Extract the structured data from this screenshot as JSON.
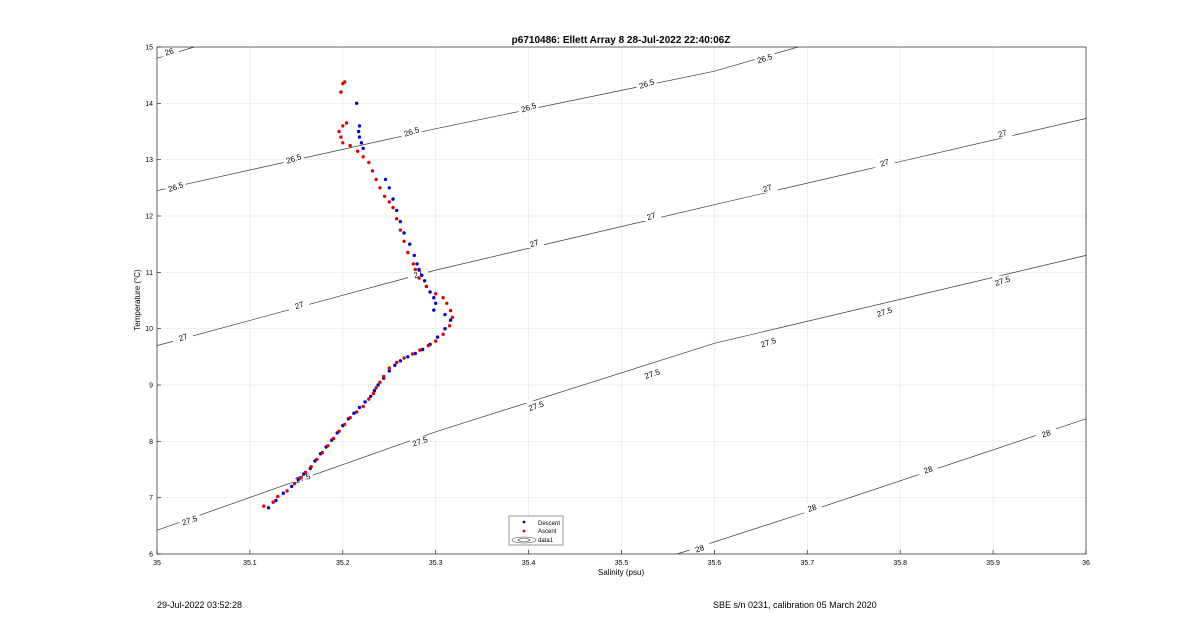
{
  "chart_data": {
    "type": "scatter",
    "title": "p6710486: Ellett Array 8 28-Jul-2022 22:40:06Z",
    "xlabel": "Salinity (psu)",
    "ylabel": "Temperature (°C)",
    "xlim": [
      35,
      36
    ],
    "ylim": [
      6,
      15
    ],
    "xticks": [
      "35",
      "35.1",
      "35.2",
      "35.3",
      "35.4",
      "35.5",
      "35.6",
      "35.7",
      "35.8",
      "35.9",
      "36"
    ],
    "yticks": [
      "6",
      "7",
      "8",
      "9",
      "10",
      "11",
      "12",
      "13",
      "14",
      "15"
    ],
    "grid": true,
    "legend_position": "bottom-center",
    "legend": [
      "Descent",
      "Ascent",
      "data1"
    ],
    "contours": [
      {
        "label": "26",
        "points": [
          [
            35.0,
            14.8
          ],
          [
            35.04,
            15.0
          ]
        ],
        "label_positions": [
          [
            35.013,
            14.92
          ]
        ]
      },
      {
        "label": "26.5",
        "points": [
          [
            35.0,
            12.45
          ],
          [
            35.3,
            13.55
          ],
          [
            35.6,
            14.57
          ],
          [
            35.69,
            15.0
          ]
        ],
        "label_positions": [
          [
            35.02,
            12.52
          ],
          [
            35.147,
            13.02
          ],
          [
            35.274,
            13.5
          ],
          [
            35.4,
            13.93
          ],
          [
            35.527,
            14.35
          ],
          [
            35.654,
            14.8
          ]
        ]
      },
      {
        "label": "27",
        "points": [
          [
            35.0,
            9.7
          ],
          [
            35.3,
            11.04
          ],
          [
            35.6,
            12.2
          ],
          [
            36.0,
            13.73
          ]
        ],
        "label_positions": [
          [
            35.028,
            9.85
          ],
          [
            35.153,
            10.42
          ],
          [
            35.281,
            10.97
          ],
          [
            35.406,
            11.52
          ],
          [
            35.532,
            12.0
          ],
          [
            35.657,
            12.5
          ],
          [
            35.783,
            12.95
          ],
          [
            35.91,
            13.47
          ]
        ]
      },
      {
        "label": "27.5",
        "points": [
          [
            35.0,
            6.42
          ],
          [
            35.3,
            8.17
          ],
          [
            35.6,
            9.74
          ],
          [
            36.0,
            11.3
          ]
        ],
        "label_positions": [
          [
            35.035,
            6.6
          ],
          [
            35.157,
            7.35
          ],
          [
            35.283,
            8.0
          ],
          [
            35.408,
            8.63
          ],
          [
            35.533,
            9.2
          ],
          [
            35.658,
            9.76
          ],
          [
            35.783,
            10.3
          ],
          [
            35.91,
            10.85
          ]
        ]
      },
      {
        "label": "28",
        "points": [
          [
            35.56,
            6.0
          ],
          [
            35.7,
            6.75
          ],
          [
            36.0,
            8.4
          ]
        ],
        "label_positions": [
          [
            35.584,
            6.1
          ],
          [
            35.705,
            6.82
          ],
          [
            35.83,
            7.5
          ],
          [
            35.957,
            8.14
          ]
        ]
      }
    ],
    "series": [
      {
        "name": "Descent",
        "color": "#0000cc",
        "points": [
          [
            35.12,
            6.82
          ],
          [
            35.128,
            6.95
          ],
          [
            35.136,
            7.08
          ],
          [
            35.145,
            7.2
          ],
          [
            35.152,
            7.32
          ],
          [
            35.158,
            7.42
          ],
          [
            35.165,
            7.52
          ],
          [
            35.17,
            7.65
          ],
          [
            35.176,
            7.78
          ],
          [
            35.182,
            7.9
          ],
          [
            35.188,
            8.02
          ],
          [
            35.194,
            8.15
          ],
          [
            35.2,
            8.28
          ],
          [
            35.206,
            8.4
          ],
          [
            35.212,
            8.5
          ],
          [
            35.218,
            8.6
          ],
          [
            35.224,
            8.7
          ],
          [
            35.23,
            8.8
          ],
          [
            35.234,
            8.9
          ],
          [
            35.238,
            9.0
          ],
          [
            35.244,
            9.12
          ],
          [
            35.25,
            9.25
          ],
          [
            35.256,
            9.35
          ],
          [
            35.262,
            9.43
          ],
          [
            35.27,
            9.5
          ],
          [
            35.278,
            9.56
          ],
          [
            35.286,
            9.63
          ],
          [
            35.294,
            9.72
          ],
          [
            35.302,
            9.85
          ],
          [
            35.31,
            10.0
          ],
          [
            35.316,
            10.15
          ],
          [
            35.31,
            10.25
          ],
          [
            35.298,
            10.33
          ],
          [
            35.3,
            10.45
          ],
          [
            35.298,
            10.55
          ],
          [
            35.294,
            10.65
          ],
          [
            35.29,
            10.75
          ],
          [
            35.288,
            10.85
          ],
          [
            35.285,
            10.95
          ],
          [
            35.282,
            11.05
          ],
          [
            35.28,
            11.15
          ],
          [
            35.277,
            11.3
          ],
          [
            35.272,
            11.5
          ],
          [
            35.266,
            11.7
          ],
          [
            35.262,
            11.9
          ],
          [
            35.258,
            12.1
          ],
          [
            35.254,
            12.3
          ],
          [
            35.25,
            12.5
          ],
          [
            35.246,
            12.65
          ],
          [
            35.222,
            13.2
          ],
          [
            35.22,
            13.3
          ],
          [
            35.218,
            13.4
          ],
          [
            35.217,
            13.5
          ],
          [
            35.218,
            13.6
          ],
          [
            35.215,
            14.0
          ]
        ]
      },
      {
        "name": "Ascent",
        "color": "#dd0000",
        "points": [
          [
            35.115,
            6.85
          ],
          [
            35.125,
            6.92
          ],
          [
            35.13,
            7.02
          ],
          [
            35.14,
            7.12
          ],
          [
            35.148,
            7.25
          ],
          [
            35.154,
            7.35
          ],
          [
            35.16,
            7.45
          ],
          [
            35.166,
            7.55
          ],
          [
            35.172,
            7.68
          ],
          [
            35.178,
            7.8
          ],
          [
            35.184,
            7.92
          ],
          [
            35.19,
            8.05
          ],
          [
            35.196,
            8.18
          ],
          [
            35.202,
            8.3
          ],
          [
            35.208,
            8.42
          ],
          [
            35.215,
            8.52
          ],
          [
            35.222,
            8.62
          ],
          [
            35.228,
            8.75
          ],
          [
            35.233,
            8.85
          ],
          [
            35.236,
            8.95
          ],
          [
            35.24,
            9.05
          ],
          [
            35.244,
            9.15
          ],
          [
            35.25,
            9.3
          ],
          [
            35.258,
            9.4
          ],
          [
            35.266,
            9.48
          ],
          [
            35.275,
            9.55
          ],
          [
            35.283,
            9.62
          ],
          [
            35.292,
            9.7
          ],
          [
            35.3,
            9.78
          ],
          [
            35.308,
            9.9
          ],
          [
            35.315,
            10.05
          ],
          [
            35.318,
            10.2
          ],
          [
            35.316,
            10.32
          ],
          [
            35.312,
            10.45
          ],
          [
            35.308,
            10.55
          ],
          [
            35.3,
            10.62
          ],
          [
            35.29,
            10.75
          ],
          [
            35.282,
            10.9
          ],
          [
            35.278,
            11.05
          ],
          [
            35.276,
            11.15
          ],
          [
            35.27,
            11.35
          ],
          [
            35.266,
            11.55
          ],
          [
            35.262,
            11.75
          ],
          [
            35.258,
            11.95
          ],
          [
            35.254,
            12.15
          ],
          [
            35.25,
            12.25
          ],
          [
            35.245,
            12.35
          ],
          [
            35.24,
            12.5
          ],
          [
            35.236,
            12.65
          ],
          [
            35.232,
            12.8
          ],
          [
            35.228,
            12.95
          ],
          [
            35.222,
            13.05
          ],
          [
            35.216,
            13.15
          ],
          [
            35.208,
            13.25
          ],
          [
            35.2,
            13.3
          ],
          [
            35.198,
            13.4
          ],
          [
            35.196,
            13.5
          ],
          [
            35.2,
            13.6
          ],
          [
            35.204,
            13.65
          ],
          [
            35.198,
            14.2
          ],
          [
            35.2,
            14.35
          ],
          [
            35.202,
            14.38
          ]
        ]
      }
    ]
  },
  "footer": {
    "left": "29-Jul-2022 03:52:28",
    "right": "SBE s/n 0231, calibration 05 March 2020"
  }
}
